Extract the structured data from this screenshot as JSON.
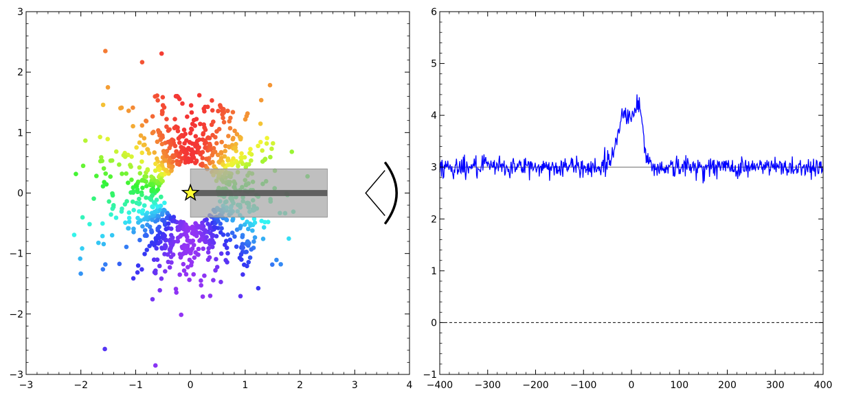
{
  "chart_data": [
    {
      "type": "scatter",
      "title": "",
      "xlabel": "",
      "ylabel": "",
      "xlim": [
        -3,
        4
      ],
      "ylim": [
        -3,
        3
      ],
      "xticks": [
        "−3",
        "−2",
        "−1",
        "0",
        "1",
        "2",
        "3",
        "4"
      ],
      "yticks": [
        "−3",
        "−2",
        "−1",
        "0",
        "1",
        "2",
        "3"
      ],
      "grid": false,
      "legend": "none",
      "description_values": {
        "point_count_approx": 1000,
        "ring_inner_radius": 0.5,
        "ring_scale": 0.6,
        "color_map": "rainbow by polar angle (red at top, violet at bottom)"
      },
      "annotations": {
        "star": {
          "x": 0,
          "y": 0,
          "color": "#ffff33"
        },
        "slit_box": {
          "x0": 0,
          "x1": 2.5,
          "y0": -0.4,
          "y1": 0.4,
          "color": "#a9a9a9"
        },
        "slit_core": {
          "x0": 0,
          "x1": 2.5,
          "y0": -0.05,
          "y1": 0.05,
          "color": "#555555"
        },
        "observer_eye": {
          "x": 3.2,
          "y": 0
        }
      }
    },
    {
      "type": "line",
      "title": "",
      "xlabel": "",
      "ylabel": "",
      "xlim": [
        -400,
        400
      ],
      "ylim": [
        -1,
        6
      ],
      "xticks": [
        "−400",
        "−300",
        "−200",
        "−100",
        "0",
        "100",
        "200",
        "300",
        "400"
      ],
      "yticks": [
        "−1",
        "0",
        "1",
        "2",
        "3",
        "4",
        "5",
        "6"
      ],
      "grid": false,
      "legend": "none",
      "continuum_level": 3,
      "zero_line": 0,
      "feature": {
        "center": -5,
        "x": [
          -60,
          -40,
          -30,
          -20,
          -10,
          0,
          5,
          10,
          15,
          20,
          25,
          30,
          40,
          60
        ],
        "y": [
          3.0,
          3.2,
          3.6,
          4.0,
          4.05,
          4.0,
          3.95,
          4.2,
          4.3,
          4.0,
          3.6,
          3.25,
          3.0,
          3.0
        ]
      },
      "noise_amplitude": 0.1,
      "series": [
        {
          "values_desc": "noisy spectrum",
          "color": "#0000ff"
        },
        {
          "values_desc": "continuum",
          "color": "#999999"
        }
      ]
    }
  ],
  "colors": {
    "spectrum": "#0000ff",
    "continuum": "#999999",
    "star_fill": "#ffff33"
  }
}
